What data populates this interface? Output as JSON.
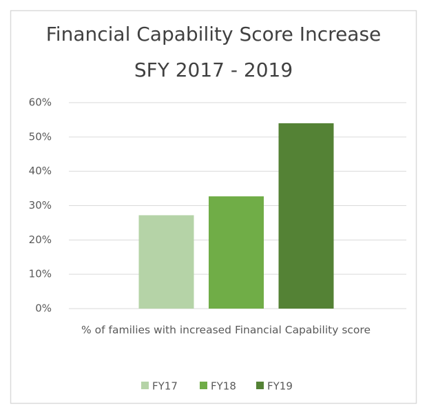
{
  "chart_data": {
    "type": "bar",
    "title": "Financial Capability Score Increase SFY 2017 - 2019",
    "categories": [
      "% of families with increased Financial Capability score"
    ],
    "series": [
      {
        "name": "FY17",
        "color": "#b5d3a7",
        "values": [
          27.2
        ]
      },
      {
        "name": "FY18",
        "color": "#70ad47",
        "values": [
          32.7
        ]
      },
      {
        "name": "FY19",
        "color": "#548235",
        "values": [
          54
        ]
      }
    ],
    "ylim": [
      0,
      60
    ],
    "yticks": [
      {
        "value": 0,
        "label": "0%"
      },
      {
        "value": 10,
        "label": "10%"
      },
      {
        "value": 20,
        "label": "20%"
      },
      {
        "value": 30,
        "label": "30%"
      },
      {
        "value": 40,
        "label": "40%"
      },
      {
        "value": 50,
        "label": "50%"
      },
      {
        "value": 60,
        "label": "60%"
      }
    ],
    "grid": true,
    "legend": "bottom"
  }
}
